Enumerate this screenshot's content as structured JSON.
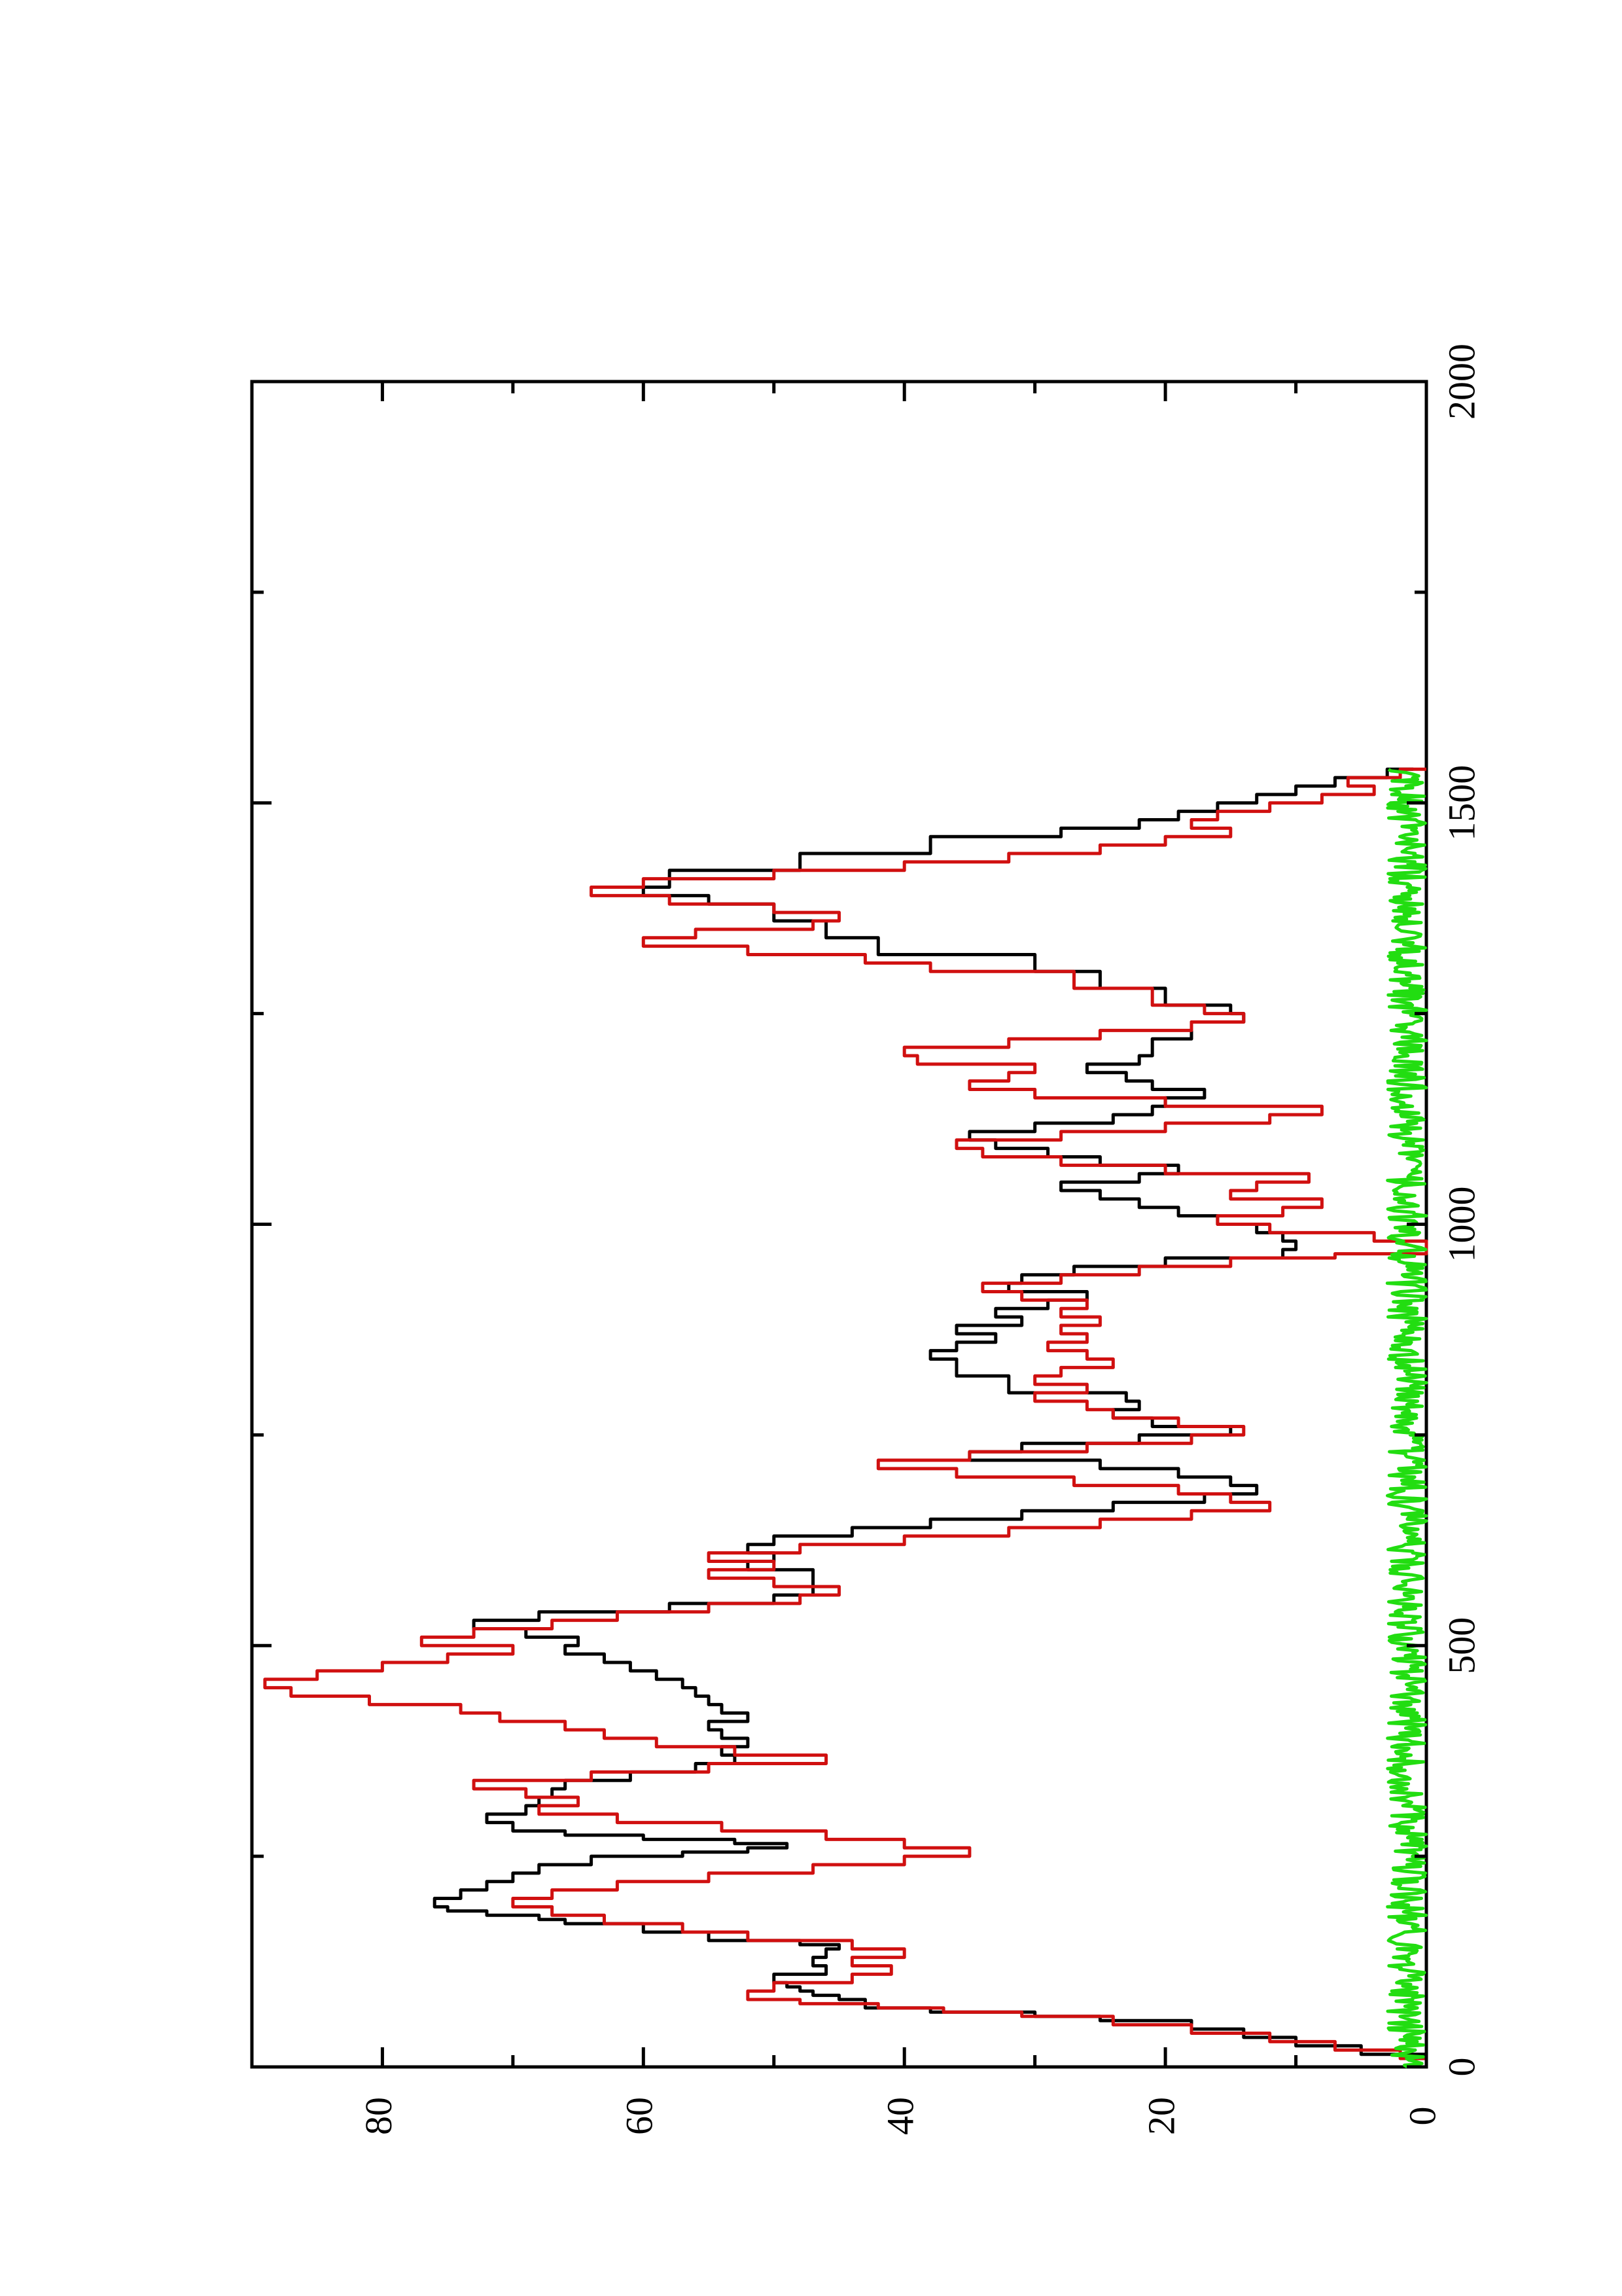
{
  "chart_data": {
    "type": "line",
    "orientation": "rotated-90-clockwise",
    "title": "",
    "xlabel": "",
    "ylabel": "",
    "xlim": [
      0,
      2000
    ],
    "ylim": [
      0,
      90
    ],
    "x_ticks": [
      0,
      500,
      1000,
      1500,
      2000
    ],
    "x_tick_labels": [
      "0",
      "500",
      "1000",
      "1500",
      "2000"
    ],
    "x_minor_ticks": [
      250,
      750,
      1250,
      1750
    ],
    "y_ticks": [
      0,
      20,
      40,
      60,
      80
    ],
    "y_tick_labels": [
      "0",
      "20",
      "40",
      "60",
      "80"
    ],
    "y_minor_ticks": [
      10,
      30,
      50,
      70,
      90
    ],
    "grid": false,
    "legend": "none",
    "series": [
      {
        "color": "#000000",
        "points": [
          [
            0,
            0
          ],
          [
            15,
            5
          ],
          [
            25,
            10
          ],
          [
            35,
            14
          ],
          [
            45,
            18
          ],
          [
            55,
            25
          ],
          [
            60,
            30
          ],
          [
            65,
            38
          ],
          [
            70,
            43
          ],
          [
            80,
            45
          ],
          [
            85,
            47
          ],
          [
            90,
            48
          ],
          [
            95,
            49
          ],
          [
            100,
            50
          ],
          [
            110,
            46
          ],
          [
            120,
            47
          ],
          [
            130,
            46
          ],
          [
            140,
            45
          ],
          [
            145,
            48
          ],
          [
            150,
            55
          ],
          [
            160,
            60
          ],
          [
            170,
            66
          ],
          [
            175,
            68
          ],
          [
            180,
            72
          ],
          [
            185,
            75
          ],
          [
            190,
            76
          ],
          [
            200,
            74
          ],
          [
            210,
            72
          ],
          [
            220,
            70
          ],
          [
            230,
            68
          ],
          [
            240,
            64
          ],
          [
            250,
            57
          ],
          [
            255,
            52
          ],
          [
            260,
            49
          ],
          [
            265,
            53
          ],
          [
            270,
            60
          ],
          [
            275,
            66
          ],
          [
            280,
            70
          ],
          [
            290,
            72
          ],
          [
            300,
            69
          ],
          [
            310,
            68
          ],
          [
            320,
            67
          ],
          [
            330,
            66
          ],
          [
            340,
            61
          ],
          [
            350,
            56
          ],
          [
            360,
            53
          ],
          [
            370,
            54
          ],
          [
            380,
            52
          ],
          [
            390,
            54
          ],
          [
            400,
            55
          ],
          [
            410,
            52
          ],
          [
            420,
            54
          ],
          [
            430,
            55
          ],
          [
            440,
            56
          ],
          [
            450,
            57
          ],
          [
            460,
            59
          ],
          [
            470,
            61
          ],
          [
            480,
            63
          ],
          [
            490,
            66
          ],
          [
            500,
            65
          ],
          [
            510,
            69
          ],
          [
            520,
            73
          ],
          [
            530,
            68
          ],
          [
            540,
            58
          ],
          [
            550,
            50
          ],
          [
            560,
            47
          ],
          [
            570,
            47
          ],
          [
            580,
            47
          ],
          [
            590,
            52
          ],
          [
            600,
            50
          ],
          [
            610,
            52
          ],
          [
            620,
            50
          ],
          [
            630,
            44
          ],
          [
            640,
            38
          ],
          [
            650,
            31
          ],
          [
            660,
            24
          ],
          [
            670,
            17
          ],
          [
            680,
            13
          ],
          [
            690,
            15
          ],
          [
            700,
            19
          ],
          [
            710,
            25
          ],
          [
            720,
            35
          ],
          [
            730,
            31
          ],
          [
            740,
            22
          ],
          [
            750,
            15
          ],
          [
            760,
            21
          ],
          [
            770,
            24
          ],
          [
            780,
            22
          ],
          [
            790,
            23
          ],
          [
            800,
            32
          ],
          [
            810,
            32
          ],
          [
            820,
            36
          ],
          [
            830,
            36
          ],
          [
            840,
            38
          ],
          [
            850,
            36
          ],
          [
            860,
            33
          ],
          [
            870,
            36
          ],
          [
            880,
            31
          ],
          [
            890,
            33
          ],
          [
            900,
            29
          ],
          [
            910,
            26
          ],
          [
            920,
            32
          ],
          [
            930,
            31
          ],
          [
            940,
            27
          ],
          [
            950,
            20
          ],
          [
            960,
            11
          ],
          [
            970,
            10
          ],
          [
            980,
            11
          ],
          [
            990,
            13
          ],
          [
            1000,
            16
          ],
          [
            1010,
            19
          ],
          [
            1020,
            22
          ],
          [
            1030,
            25
          ],
          [
            1040,
            28
          ],
          [
            1050,
            22
          ],
          [
            1060,
            19
          ],
          [
            1070,
            25
          ],
          [
            1080,
            29
          ],
          [
            1090,
            33
          ],
          [
            1100,
            35
          ],
          [
            1110,
            30
          ],
          [
            1120,
            24
          ],
          [
            1130,
            21
          ],
          [
            1140,
            20
          ],
          [
            1150,
            17
          ],
          [
            1160,
            21
          ],
          [
            1170,
            23
          ],
          [
            1180,
            26
          ],
          [
            1190,
            22
          ],
          [
            1200,
            21
          ],
          [
            1220,
            18
          ],
          [
            1240,
            14
          ],
          [
            1250,
            15
          ],
          [
            1260,
            20
          ],
          [
            1280,
            25
          ],
          [
            1300,
            30
          ],
          [
            1320,
            42
          ],
          [
            1340,
            46
          ],
          [
            1360,
            50
          ],
          [
            1380,
            55
          ],
          [
            1390,
            60
          ],
          [
            1400,
            58
          ],
          [
            1420,
            48
          ],
          [
            1440,
            38
          ],
          [
            1460,
            28
          ],
          [
            1470,
            22
          ],
          [
            1480,
            19
          ],
          [
            1490,
            16
          ],
          [
            1500,
            13
          ],
          [
            1510,
            10
          ],
          [
            1520,
            7
          ],
          [
            1530,
            3
          ],
          [
            1540,
            1
          ]
        ]
      },
      {
        "color": "#d01010",
        "points": [
          [
            0,
            0
          ],
          [
            10,
            2
          ],
          [
            20,
            7
          ],
          [
            30,
            12
          ],
          [
            40,
            18
          ],
          [
            50,
            24
          ],
          [
            60,
            31
          ],
          [
            65,
            37
          ],
          [
            70,
            42
          ],
          [
            75,
            48
          ],
          [
            80,
            52
          ],
          [
            90,
            50
          ],
          [
            100,
            44
          ],
          [
            110,
            41
          ],
          [
            120,
            44
          ],
          [
            130,
            40
          ],
          [
            140,
            44
          ],
          [
            150,
            52
          ],
          [
            160,
            57
          ],
          [
            170,
            63
          ],
          [
            180,
            67
          ],
          [
            190,
            70
          ],
          [
            200,
            67
          ],
          [
            210,
            62
          ],
          [
            220,
            55
          ],
          [
            230,
            47
          ],
          [
            240,
            40
          ],
          [
            250,
            35
          ],
          [
            260,
            40
          ],
          [
            270,
            46
          ],
          [
            280,
            54
          ],
          [
            290,
            62
          ],
          [
            300,
            68
          ],
          [
            310,
            65
          ],
          [
            320,
            69
          ],
          [
            330,
            73
          ],
          [
            340,
            64
          ],
          [
            350,
            55
          ],
          [
            360,
            46
          ],
          [
            370,
            53
          ],
          [
            380,
            59
          ],
          [
            390,
            63
          ],
          [
            400,
            66
          ],
          [
            410,
            71
          ],
          [
            420,
            74
          ],
          [
            430,
            81
          ],
          [
            440,
            87
          ],
          [
            450,
            89
          ],
          [
            460,
            85
          ],
          [
            470,
            80
          ],
          [
            480,
            75
          ],
          [
            490,
            70
          ],
          [
            500,
            77
          ],
          [
            510,
            73
          ],
          [
            520,
            67
          ],
          [
            530,
            62
          ],
          [
            540,
            55
          ],
          [
            550,
            48
          ],
          [
            560,
            45
          ],
          [
            570,
            50
          ],
          [
            580,
            55
          ],
          [
            590,
            50
          ],
          [
            600,
            55
          ],
          [
            610,
            48
          ],
          [
            620,
            40
          ],
          [
            630,
            32
          ],
          [
            640,
            25
          ],
          [
            650,
            18
          ],
          [
            660,
            12
          ],
          [
            670,
            15
          ],
          [
            680,
            19
          ],
          [
            690,
            27
          ],
          [
            700,
            36
          ],
          [
            710,
            42
          ],
          [
            720,
            35
          ],
          [
            730,
            26
          ],
          [
            740,
            18
          ],
          [
            750,
            14
          ],
          [
            760,
            19
          ],
          [
            770,
            24
          ],
          [
            780,
            26
          ],
          [
            790,
            30
          ],
          [
            800,
            26
          ],
          [
            810,
            30
          ],
          [
            820,
            28
          ],
          [
            830,
            24
          ],
          [
            840,
            26
          ],
          [
            850,
            29
          ],
          [
            860,
            26
          ],
          [
            870,
            28
          ],
          [
            880,
            25
          ],
          [
            890,
            28
          ],
          [
            900,
            26
          ],
          [
            910,
            31
          ],
          [
            920,
            34
          ],
          [
            930,
            28
          ],
          [
            940,
            22
          ],
          [
            950,
            15
          ],
          [
            960,
            7
          ],
          [
            965,
            0
          ],
          [
            980,
            4
          ],
          [
            990,
            12
          ],
          [
            1000,
            16
          ],
          [
            1010,
            11
          ],
          [
            1020,
            8
          ],
          [
            1030,
            15
          ],
          [
            1040,
            13
          ],
          [
            1050,
            9
          ],
          [
            1060,
            20
          ],
          [
            1070,
            28
          ],
          [
            1080,
            34
          ],
          [
            1090,
            36
          ],
          [
            1100,
            28
          ],
          [
            1110,
            20
          ],
          [
            1120,
            12
          ],
          [
            1130,
            8
          ],
          [
            1140,
            20
          ],
          [
            1150,
            30
          ],
          [
            1160,
            35
          ],
          [
            1170,
            32
          ],
          [
            1180,
            30
          ],
          [
            1190,
            39
          ],
          [
            1200,
            40
          ],
          [
            1210,
            32
          ],
          [
            1220,
            25
          ],
          [
            1230,
            18
          ],
          [
            1240,
            14
          ],
          [
            1250,
            17
          ],
          [
            1260,
            21
          ],
          [
            1280,
            27
          ],
          [
            1300,
            38
          ],
          [
            1310,
            43
          ],
          [
            1320,
            52
          ],
          [
            1330,
            60
          ],
          [
            1340,
            56
          ],
          [
            1350,
            47
          ],
          [
            1360,
            45
          ],
          [
            1370,
            50
          ],
          [
            1380,
            58
          ],
          [
            1390,
            64
          ],
          [
            1400,
            60
          ],
          [
            1410,
            50
          ],
          [
            1420,
            40
          ],
          [
            1430,
            32
          ],
          [
            1440,
            25
          ],
          [
            1450,
            20
          ],
          [
            1460,
            15
          ],
          [
            1470,
            18
          ],
          [
            1480,
            16
          ],
          [
            1490,
            12
          ],
          [
            1500,
            8
          ],
          [
            1510,
            4
          ],
          [
            1520,
            6
          ],
          [
            1530,
            2
          ],
          [
            1540,
            0
          ]
        ]
      },
      {
        "color": "#22dd11",
        "noise_band": [
          0,
          1540
        ],
        "amplitude": 3
      }
    ]
  }
}
